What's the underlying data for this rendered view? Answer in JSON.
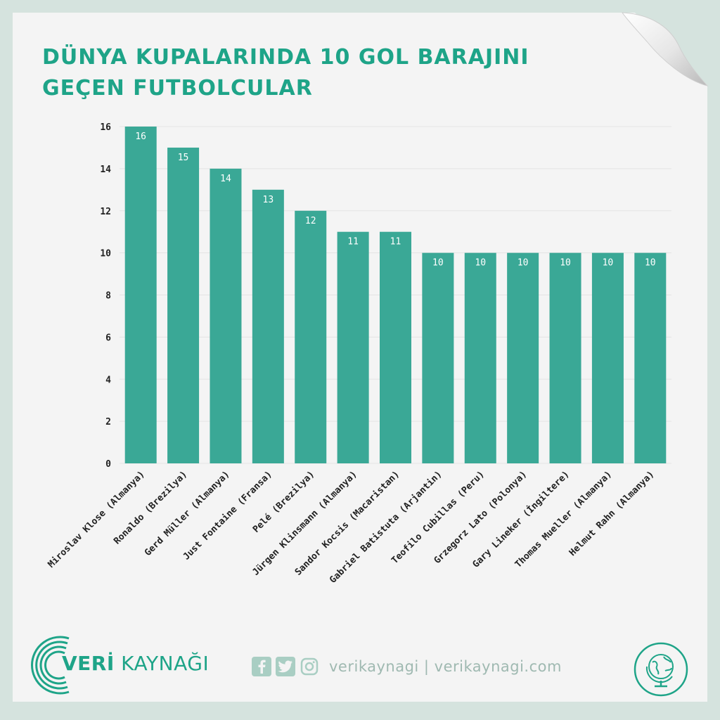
{
  "title": {
    "line1": "DÜNYA KUPALARINDA 10 GOL BARAJINI",
    "line2": "GEÇEN FUTBOLCULAR"
  },
  "chart_data": {
    "type": "bar",
    "categories": [
      "Miroslav Klose (Almanya)",
      "Ronaldo (Brezilya)",
      "Gerd Müller (Almanya)",
      "Just Fontaine (Fransa)",
      "Pelé (Brezilya)",
      "Jürgen Klinsmann (Almanya)",
      "Sandor Kocsis (Macaristan)",
      "Gabriel Batistuta (Arjantin)",
      "Teofilo Cubillas (Peru)",
      "Grzegorz Lato (Polonya)",
      "Gary Lineker (İngiltere)",
      "Thomas Mueller (Almanya)",
      "Helmut Rahn (Almanya)"
    ],
    "values": [
      16,
      15,
      14,
      13,
      12,
      11,
      11,
      10,
      10,
      10,
      10,
      10,
      10
    ],
    "ylim": [
      0,
      16
    ],
    "yticks": [
      0,
      2,
      4,
      6,
      8,
      10,
      12,
      14,
      16
    ],
    "grid": true,
    "data_labels": true
  },
  "colors": {
    "accent": "#1ea488",
    "bar": "#3aa896",
    "grid": "#e3e3e3",
    "background": "#f4f4f4"
  },
  "footer": {
    "brand_bold": "VERİ",
    "brand_rest": " KAYNAĞI",
    "social_icons": [
      "facebook-icon",
      "twitter-icon",
      "instagram-icon"
    ],
    "social_text": "verikaynagi | verikaynagi.com",
    "badge_icon": "globe-icon"
  }
}
